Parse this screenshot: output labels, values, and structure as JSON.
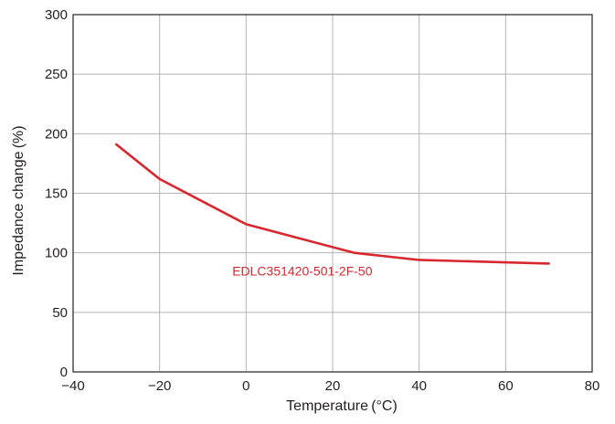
{
  "chart_data": {
    "type": "line",
    "title": "",
    "xlabel": "Temperature (°C)",
    "ylabel": "Impedance change (%)",
    "xlim": [
      -40,
      80
    ],
    "ylim": [
      0,
      300
    ],
    "grid": true,
    "x_ticks": [
      "−40",
      "−20",
      "0",
      "20",
      "40",
      "60",
      "80"
    ],
    "y_ticks": [
      "0",
      "50",
      "100",
      "150",
      "200",
      "250",
      "300"
    ],
    "x_tick_values": [
      -40,
      -20,
      0,
      20,
      40,
      60,
      80
    ],
    "y_tick_values": [
      0,
      50,
      100,
      150,
      200,
      250,
      300
    ],
    "series": [
      {
        "name": "EDLC351420-501-2F-50",
        "color": "#d7282f",
        "x": [
          -30,
          -20,
          0,
          25,
          40,
          70
        ],
        "y": [
          191,
          162,
          124,
          100,
          94,
          91
        ]
      }
    ]
  }
}
